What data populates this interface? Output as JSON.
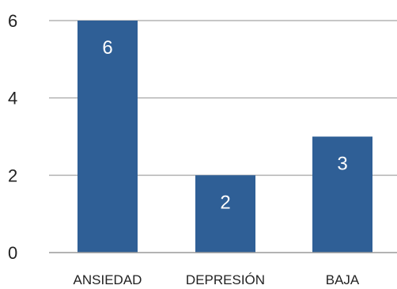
{
  "chart_data": {
    "type": "bar",
    "categories": [
      "ANSIEDAD",
      "DEPRESIÓN",
      "BAJA"
    ],
    "values": [
      6,
      2,
      3
    ],
    "data_labels": [
      "6",
      "2",
      "3"
    ],
    "y_ticks": [
      0,
      2,
      4,
      6
    ],
    "y_tick_labels": [
      "0",
      "2",
      "4",
      "6"
    ],
    "ylim": [
      0,
      6
    ],
    "grid": true,
    "legend": "none",
    "colors": {
      "bar": "#2f5f96",
      "grid": "#b3b3b3",
      "axis": "#9a9a9a"
    }
  }
}
